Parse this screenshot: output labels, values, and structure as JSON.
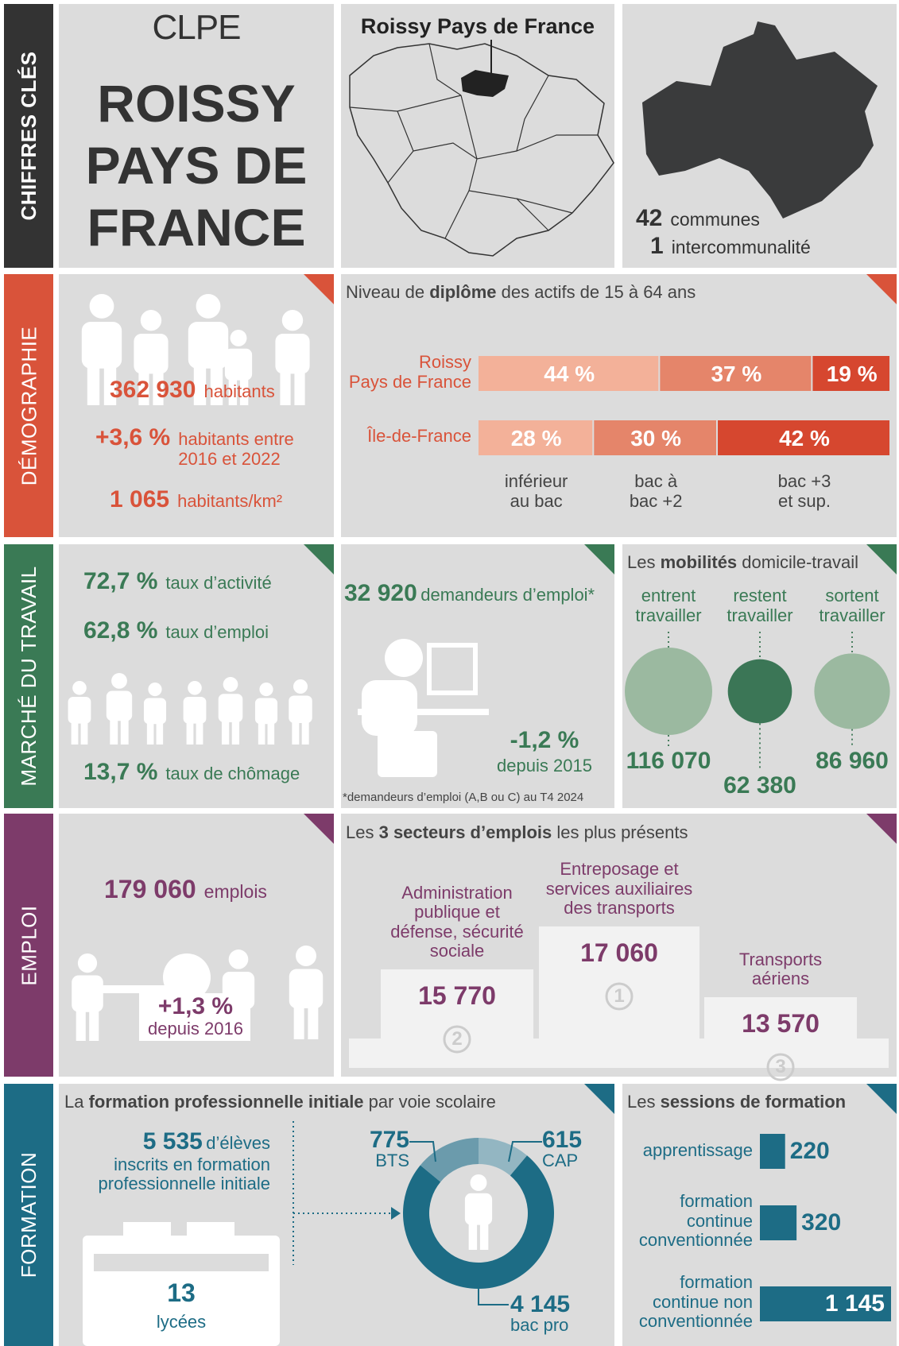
{
  "sections": [
    "CHIFFRES CLÉS",
    "DÉMOGRAPHIE",
    "MARCHÉ DU TRAVAIL",
    "EMPLOI",
    "FORMATION"
  ],
  "header": {
    "org": "CLPE",
    "title": "ROISSY\nPAYS DE\nFRANCE",
    "map_title": "Roissy Pays de France",
    "communes": {
      "value": "42",
      "label": "communes"
    },
    "intercommunalite": {
      "value": "1",
      "label": "intercommunalité"
    }
  },
  "demographie": {
    "stats": [
      {
        "value": "362 930",
        "label": "habitants"
      },
      {
        "value": "+3,6 %",
        "label": "habitants entre\n2016 et 2022"
      },
      {
        "value": "1 065",
        "label": "habitants/km²"
      }
    ]
  },
  "diplome": {
    "title": [
      "Niveau de ",
      "diplôme",
      " des actifs de 15 à 64 ans"
    ],
    "chart": {
      "type": "bar",
      "stacked": true,
      "orientation": "horizontal",
      "categories": [
        "Roissy\nPays de France",
        "Île-de-France"
      ],
      "series": [
        {
          "name": "inférieur\nau bac",
          "color": "#f3b199",
          "values": [
            44,
            28
          ],
          "value_labels": [
            "44 %",
            "28 %"
          ]
        },
        {
          "name": "bac à\nbac +2",
          "color": "#e5856a",
          "values": [
            37,
            30
          ],
          "value_labels": [
            "37 %",
            "30 %"
          ]
        },
        {
          "name": "bac +3\net sup.",
          "color": "#d6472f",
          "values": [
            19,
            42
          ],
          "value_labels": [
            "19 %",
            "42 %"
          ]
        }
      ]
    }
  },
  "travail": {
    "stats": [
      {
        "value": "72,7 %",
        "label": "taux d’activité"
      },
      {
        "value": "62,8 %",
        "label": "taux d’emploi"
      },
      {
        "value": "13,7 %",
        "label": "taux de chômage"
      }
    ],
    "demandeurs": {
      "value": "32 920",
      "label": "demandeurs d’emploi*",
      "change": "-1,2 %",
      "change_label": "depuis 2015",
      "footnote": "*demandeurs d’emploi (A,B ou C) au T4 2024"
    }
  },
  "mobilites": {
    "title": [
      "Les ",
      "mobilités",
      " domicile-travail"
    ],
    "chart": {
      "type": "bubble",
      "categories": [
        "entrent\ntravailler",
        "restent\ntravailler",
        "sortent\ntravailler"
      ],
      "values": [
        116070,
        62380,
        86960
      ],
      "value_labels": [
        "116 070",
        "62 380",
        "86 960"
      ],
      "colors": [
        "#9bb9a0",
        "#3b7656",
        "#9bb9a0"
      ]
    }
  },
  "emploi": {
    "total": {
      "value": "179 060",
      "label": "emplois"
    },
    "change": {
      "value": "+1,3 %",
      "label": "depuis 2016"
    }
  },
  "secteurs": {
    "title": [
      "Les ",
      "3 secteurs d’emplois",
      " les plus présents"
    ],
    "items": [
      {
        "label": "Administration\npublique et\ndéfense, sécurité\nsociale",
        "value": "15 770",
        "rank": "2"
      },
      {
        "label": "Entreposage et\nservices auxiliaires\ndes transports",
        "value": "17 060",
        "rank": "1"
      },
      {
        "label": "Transports\naériens",
        "value": "13 570",
        "rank": "3"
      }
    ]
  },
  "formation": {
    "title": [
      "La ",
      "formation professionnelle initiale",
      " par voie scolaire"
    ],
    "eleves": {
      "value": "5 535",
      "label": "d’élèves\ninscrits en formation\nprofessionnelle initiale"
    },
    "lycees": {
      "value": "13",
      "label": "lycées"
    },
    "donut": {
      "type": "pie",
      "categories": [
        "BTS",
        "CAP",
        "bac pro"
      ],
      "values": [
        775,
        615,
        4145
      ],
      "value_labels": [
        "775",
        "615",
        "4 145"
      ],
      "colors": [
        "#6b9bac",
        "#93b6c2",
        "#1d6c85"
      ]
    }
  },
  "sessions": {
    "title": [
      "Les ",
      "sessions de formation"
    ],
    "chart": {
      "type": "bar",
      "orientation": "horizontal",
      "categories": [
        "apprentissage",
        "formation\ncontinue\nconventionnée",
        "formation\ncontinue non\nconventionnée"
      ],
      "values": [
        220,
        320,
        1145
      ],
      "value_labels": [
        "220",
        "320",
        "1 145"
      ],
      "color": "#1d6c85"
    }
  }
}
